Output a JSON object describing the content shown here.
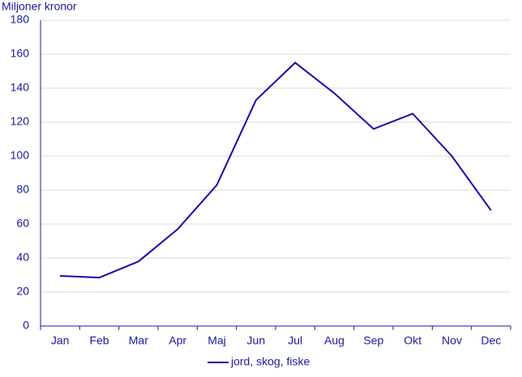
{
  "chart_data": {
    "type": "line",
    "y_label": "Miljoner kronor",
    "categories": [
      "Jan",
      "Feb",
      "Mar",
      "Apr",
      "Maj",
      "Jun",
      "Jul",
      "Aug",
      "Sep",
      "Okt",
      "Nov",
      "Dec"
    ],
    "series": [
      {
        "name": "jord, skog, fiske",
        "color": "#2200aa",
        "values": [
          29.5,
          28.5,
          38,
          57,
          83,
          133,
          155,
          137,
          116,
          125,
          100,
          68
        ]
      }
    ],
    "ylim": [
      0,
      180
    ],
    "yticks": [
      0,
      20,
      40,
      60,
      80,
      100,
      120,
      140,
      160,
      180
    ],
    "grid": true
  }
}
